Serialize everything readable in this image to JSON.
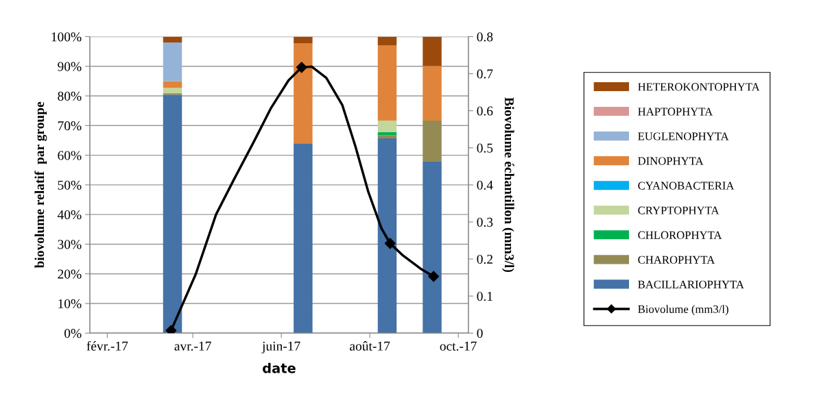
{
  "chart_data": {
    "type": "bar",
    "stacked": true,
    "xlabel": "date",
    "ylabel": "biovolume relatif  par groupe",
    "y2label": "Biovolume échantillon (mm3/l)",
    "x": [
      "2017-03-18",
      "2017-06-16",
      "2017-08-13",
      "2017-09-13"
    ],
    "series": [
      {
        "name": "BACILLARIOPHYTA",
        "color": "#4572a7",
        "values": [
          80.4,
          64.0,
          65.7,
          58.0
        ]
      },
      {
        "name": "CHAROPHYTA",
        "color": "#948a54",
        "values": [
          0.3,
          0,
          1.1,
          13.7
        ]
      },
      {
        "name": "CHLOROPHYTA",
        "color": "#00b050",
        "values": [
          0.2,
          0,
          1.0,
          0
        ]
      },
      {
        "name": "CRYPTOPHYTA",
        "color": "#c3d69b",
        "values": [
          1.8,
          0,
          3.9,
          0
        ]
      },
      {
        "name": "CYANOBACTERIA",
        "color": "#00b0f0",
        "values": [
          0,
          0,
          0,
          0
        ]
      },
      {
        "name": "DINOPHYTA",
        "color": "#e0843c",
        "values": [
          2.3,
          33.7,
          25.3,
          18.4
        ]
      },
      {
        "name": "EUGLENOPHYTA",
        "color": "#95b3d7",
        "values": [
          13.0,
          0,
          0,
          0
        ]
      },
      {
        "name": "HAPTOPHYTA",
        "color": "#d99694",
        "values": [
          0,
          0,
          0,
          0
        ]
      },
      {
        "name": "HETEROKONTOPHYTA",
        "color": "#9c4a0c",
        "values": [
          2.0,
          2.3,
          3.0,
          9.9
        ]
      },
      {
        "name": "Biovolume (mm3/l)",
        "type": "line",
        "axis": "y2",
        "color": "#000000",
        "x": [
          "2017-03-17",
          "2017-04-03",
          "2017-04-17",
          "2017-04-29",
          "2017-05-13",
          "2017-05-25",
          "2017-06-06",
          "2017-06-15",
          "2017-06-22",
          "2017-07-02",
          "2017-07-13",
          "2017-07-22",
          "2017-07-31",
          "2017-08-09",
          "2017-08-15",
          "2017-08-24",
          "2017-09-05",
          "2017-09-14"
        ],
        "values": [
          0.007,
          0.159,
          0.32,
          0.412,
          0.516,
          0.608,
          0.682,
          0.717,
          0.719,
          0.689,
          0.616,
          0.505,
          0.381,
          0.283,
          0.242,
          0.209,
          0.174,
          0.153
        ]
      },
      {
        "type": "scatter",
        "axis": "y2",
        "color": "#000000",
        "marker": "diamond",
        "x": [
          "2017-03-17",
          "2017-06-15",
          "2017-08-15",
          "2017-09-14"
        ],
        "values": [
          0.007,
          0.717,
          0.242,
          0.153
        ]
      }
    ],
    "xlim": [
      "2017-01-20",
      "2017-10-08"
    ],
    "xticks": [
      {
        "value": "2017-02-01",
        "label": "févr.-17"
      },
      {
        "value": "2017-04-01",
        "label": "avr.-17"
      },
      {
        "value": "2017-06-01",
        "label": "juin-17"
      },
      {
        "value": "2017-08-01",
        "label": "août-17"
      },
      {
        "value": "2017-10-01",
        "label": "oct.-17"
      }
    ],
    "ylim": [
      0,
      100
    ],
    "yticks": [
      {
        "value": 0,
        "label": "0%"
      },
      {
        "value": 10,
        "label": "10%"
      },
      {
        "value": 20,
        "label": "20%"
      },
      {
        "value": 30,
        "label": "30%"
      },
      {
        "value": 40,
        "label": "40%"
      },
      {
        "value": 50,
        "label": "50%"
      },
      {
        "value": 60,
        "label": "60%"
      },
      {
        "value": 70,
        "label": "70%"
      },
      {
        "value": 80,
        "label": "80%"
      },
      {
        "value": 90,
        "label": "90%"
      },
      {
        "value": 100,
        "label": "100%"
      }
    ],
    "y2lim": [
      0,
      0.8
    ],
    "y2ticks": [
      0,
      0.1,
      0.2,
      0.3,
      0.4,
      0.5,
      0.6,
      0.7,
      0.8
    ],
    "grid": "y",
    "legend": "right"
  }
}
